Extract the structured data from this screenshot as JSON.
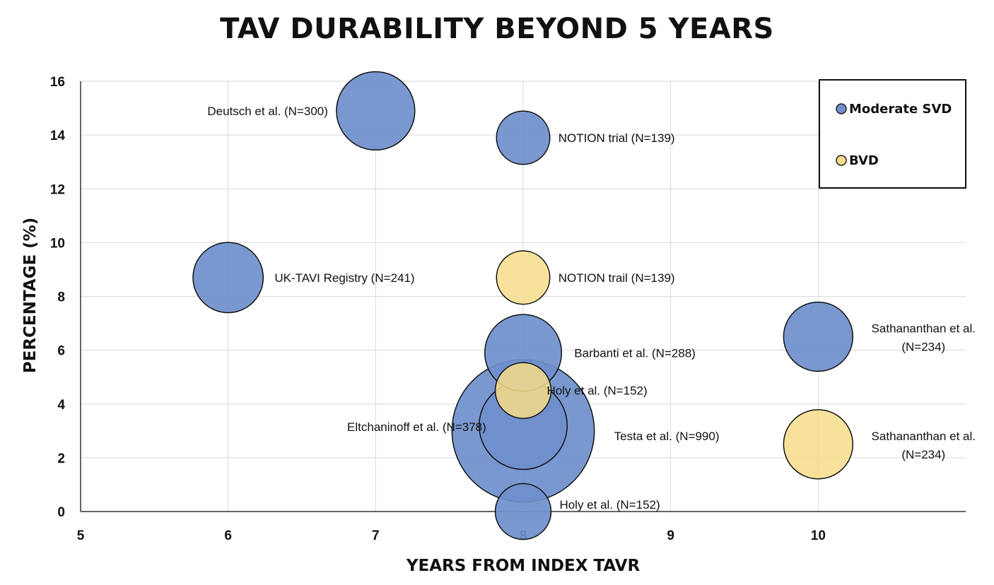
{
  "chart_data": {
    "type": "bubble",
    "title": "TAV DURABILITY BEYOND 5 YEARS",
    "xlabel": "YEARS FROM INDEX TAVR",
    "ylabel": "PERCENTAGE (%)",
    "xlim": [
      5,
      11
    ],
    "ylim": [
      0,
      16
    ],
    "xticks": [
      "5",
      "6",
      "7",
      "8",
      "9",
      "10"
    ],
    "yticks": [
      "0",
      "2",
      "4",
      "6",
      "8",
      "10",
      "12",
      "14",
      "16"
    ],
    "grid": true,
    "legend_position": "top-right",
    "colors": {
      "Moderate SVD": "#6f8fcc",
      "BVD": "#f7dd8a"
    },
    "legend": [
      "Moderate SVD",
      "BVD"
    ],
    "series": [
      {
        "name": "Moderate SVD",
        "points": [
          {
            "label": "Deutsch et al. (N=300)",
            "x": 7,
            "y": 14.9,
            "n": 300
          },
          {
            "label": "NOTION trial (N=139)",
            "x": 8,
            "y": 13.9,
            "n": 139
          },
          {
            "label": "UK-TAVI Registry (N=241)",
            "x": 6,
            "y": 8.7,
            "n": 241
          },
          {
            "label": "Sathananthan et al. (N=234)",
            "x": 10,
            "y": 6.5,
            "n": 234
          },
          {
            "label": "Barbanti et al. (N=288)",
            "x": 8,
            "y": 5.9,
            "n": 288
          },
          {
            "label": "Testa et al. (N=990)",
            "x": 8,
            "y": 3.0,
            "n": 990
          },
          {
            "label": "Eltchaninoff et al. (N=378)",
            "x": 8,
            "y": 3.2,
            "n": 378
          },
          {
            "label": "Holy et al. (N=152)",
            "x": 8,
            "y": 0.0,
            "n": 152
          }
        ]
      },
      {
        "name": "BVD",
        "points": [
          {
            "label": "NOTION trail (N=139)",
            "x": 8,
            "y": 8.7,
            "n": 139
          },
          {
            "label": "Holy et al. (N=152)",
            "x": 8,
            "y": 4.5,
            "n": 152
          },
          {
            "label": "Sathananthan et al. (N=234)",
            "x": 10,
            "y": 2.5,
            "n": 234
          }
        ]
      }
    ]
  }
}
